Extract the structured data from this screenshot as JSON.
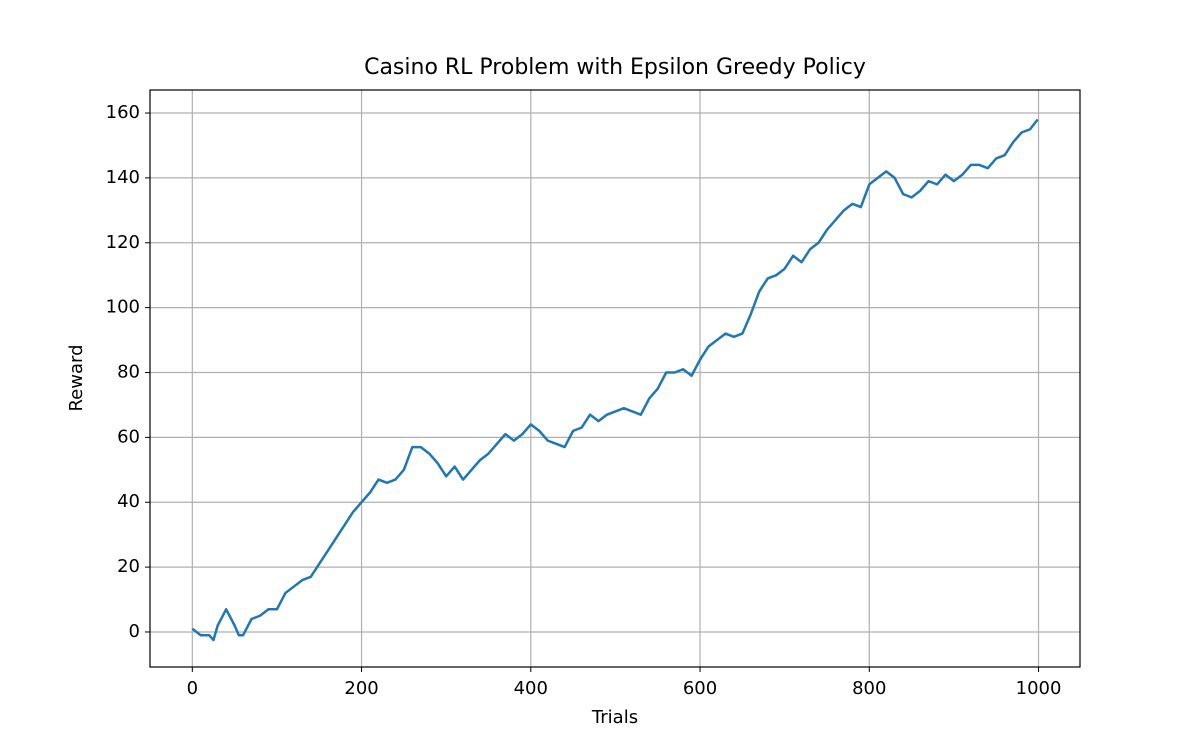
{
  "chart_data": {
    "type": "line",
    "title": "Casino RL Problem with Epsilon Greedy Policy",
    "x_label": "Trials",
    "y_label": "Reward",
    "x": [
      0,
      10,
      20,
      25,
      30,
      40,
      50,
      55,
      60,
      70,
      80,
      90,
      100,
      110,
      120,
      130,
      140,
      150,
      160,
      170,
      180,
      190,
      200,
      210,
      220,
      230,
      240,
      250,
      260,
      270,
      280,
      290,
      300,
      310,
      320,
      330,
      340,
      350,
      360,
      370,
      380,
      390,
      400,
      410,
      420,
      430,
      440,
      450,
      460,
      470,
      480,
      490,
      500,
      510,
      520,
      530,
      540,
      550,
      560,
      570,
      580,
      590,
      600,
      610,
      620,
      630,
      640,
      650,
      660,
      670,
      680,
      690,
      700,
      710,
      720,
      730,
      740,
      750,
      760,
      770,
      780,
      790,
      800,
      810,
      820,
      830,
      840,
      850,
      860,
      870,
      880,
      890,
      900,
      910,
      920,
      930,
      940,
      950,
      960,
      970,
      980,
      990,
      999
    ],
    "series": [
      {
        "name": "Reward",
        "color": "#1f77b4",
        "values": [
          1,
          -1,
          -1,
          -2.5,
          2,
          7,
          2,
          -1,
          -1,
          4,
          5,
          7,
          7,
          12,
          14,
          16,
          17,
          21,
          25,
          29,
          33,
          37,
          40,
          43,
          47,
          46,
          47,
          50,
          57,
          57,
          55,
          52,
          48,
          51,
          47,
          50,
          53,
          55,
          58,
          61,
          59,
          61,
          64,
          62,
          59,
          58,
          57,
          62,
          63,
          67,
          65,
          67,
          68,
          69,
          68,
          67,
          72,
          75,
          80,
          80,
          81,
          79,
          84,
          88,
          90,
          92,
          91,
          92,
          98,
          105,
          109,
          110,
          112,
          116,
          114,
          118,
          120,
          124,
          127,
          130,
          132,
          131,
          138,
          140,
          142,
          140,
          135,
          134,
          136,
          139,
          138,
          141,
          139,
          141,
          144,
          144,
          143,
          146,
          147,
          151,
          154,
          155,
          158
        ]
      }
    ],
    "xlim": [
      -50,
      1049
    ],
    "ylim": [
      -10.8,
      167.1
    ],
    "xticks": [
      0,
      200,
      400,
      600,
      800,
      1000
    ],
    "yticks": [
      0,
      20,
      40,
      60,
      80,
      100,
      120,
      140,
      160
    ],
    "grid": true
  }
}
